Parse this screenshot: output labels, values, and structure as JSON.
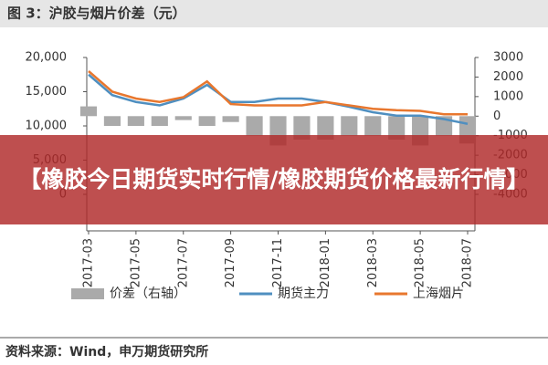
{
  "chart_data": {
    "type": "bar-line",
    "title": "图 3：沪胶与烟片价差（元）",
    "categories": [
      "2017-03",
      null,
      "2017-05",
      null,
      "2017-07",
      null,
      "2017-09",
      null,
      "2017-11",
      null,
      "2018-01",
      null,
      "2018-03",
      null,
      "2018-05",
      null,
      "2018-07"
    ],
    "series": [
      {
        "name": "价差（右轴）",
        "color": "#aaaaaa",
        "axis": "y2",
        "kind": "bar",
        "values": [
          500,
          -500,
          -500,
          -500,
          -200,
          -500,
          -300,
          -1000,
          -1500,
          -1200,
          -1200,
          -1000,
          -1000,
          -1200,
          -1500,
          -1000,
          -1400
        ]
      },
      {
        "name": "期货主力",
        "color": "#4f8fc0",
        "kind": "line",
        "values": [
          17500,
          14500,
          13500,
          13000,
          14000,
          16000,
          13500,
          13500,
          14000,
          14000,
          13500,
          12800,
          12000,
          11500,
          11500,
          11000,
          10300
        ]
      },
      {
        "name": "上海烟片",
        "color": "#e8772e",
        "kind": "line",
        "values": [
          18000,
          15000,
          14000,
          13500,
          14200,
          16500,
          13200,
          13000,
          13000,
          13000,
          13500,
          13000,
          12500,
          12300,
          12200,
          11700,
          11700
        ]
      }
    ],
    "ylim": [
      0,
      20000
    ],
    "yticks": [
      0,
      {
        "value": 5000,
        "label": "5,000"
      },
      {
        "value": 10000,
        "label": "10,000"
      },
      {
        "value": 15000,
        "label": "15,000"
      },
      {
        "value": 20000,
        "label": "20,000"
      }
    ],
    "y2lim": [
      -4000,
      3000
    ],
    "y2ticks": [
      -4000,
      -3000,
      -2000,
      -1000,
      0,
      1000,
      2000,
      3000
    ]
  },
  "source": "资料来源：Wind，申万期货研究所",
  "banner": "【橡胶今日期货实时行情/橡胶期货价格最新行情】"
}
